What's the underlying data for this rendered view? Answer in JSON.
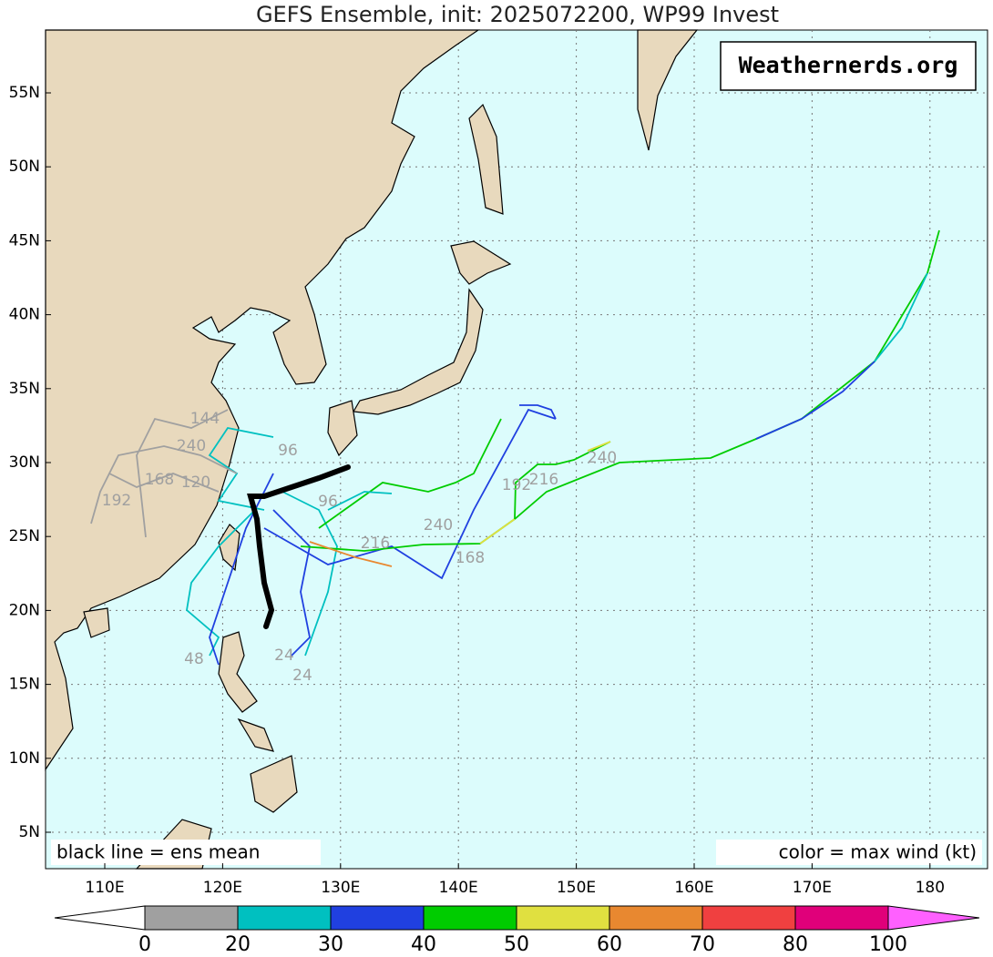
{
  "title": "GEFS Ensemble, init: 2025072200, WP99 Invest",
  "watermark": "Weathernerds.org",
  "lat_labels": [
    "55N",
    "50N",
    "45N",
    "40N",
    "35N",
    "30N",
    "25N",
    "20N",
    "15N",
    "10N",
    "5N"
  ],
  "lon_labels": [
    "110E",
    "120E",
    "130E",
    "140E",
    "150E",
    "160E",
    "170E",
    "180"
  ],
  "notes": {
    "left": "black line = ens mean",
    "right": "color = max wind (kt)"
  },
  "colorbar": {
    "labels": [
      "0",
      "20",
      "30",
      "40",
      "50",
      "60",
      "70",
      "80",
      "100"
    ],
    "colors": [
      "#ffffff",
      "#a0a0a0",
      "#00c0c0",
      "#2040e0",
      "#00cc00",
      "#e0e040",
      "#e88830",
      "#f04040",
      "#e0007a",
      "#ff60ff"
    ]
  },
  "track_labels": [
    "240",
    "216",
    "192",
    "240",
    "216",
    "168",
    "96",
    "96",
    "192",
    "168",
    "120",
    "144",
    "240",
    "24",
    "24",
    "48"
  ]
}
